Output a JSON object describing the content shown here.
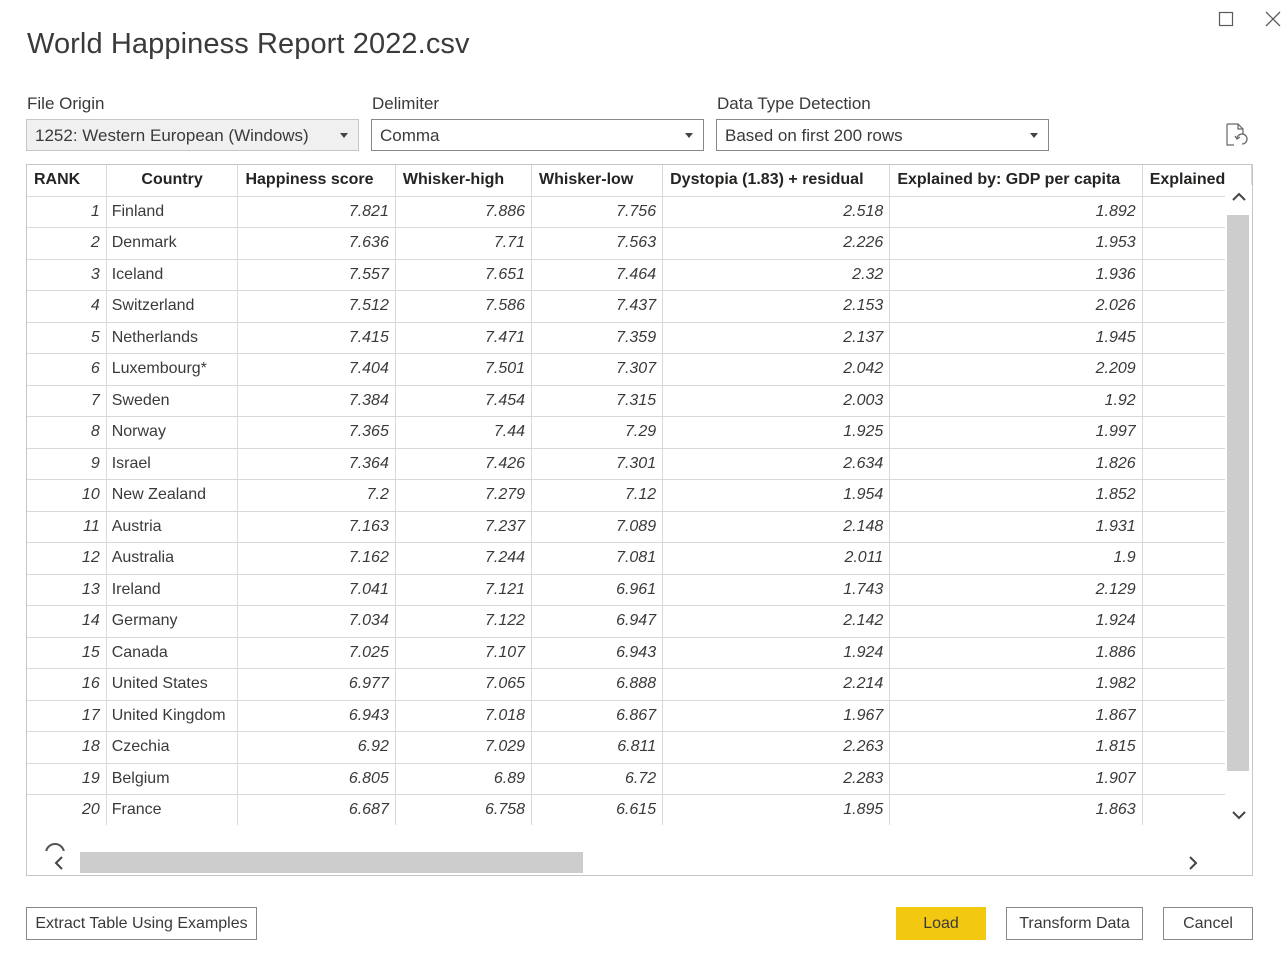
{
  "dialog": {
    "title": "World Happiness Report 2022.csv"
  },
  "options": {
    "file_origin": {
      "label": "File Origin",
      "value": "1252: Western European (Windows)"
    },
    "delimiter": {
      "label": "Delimiter",
      "value": "Comma"
    },
    "data_type_detection": {
      "label": "Data Type Detection",
      "value": "Based on first 200 rows"
    }
  },
  "table": {
    "columns": [
      "RANK",
      "Country",
      "Happiness score",
      "Whisker-high",
      "Whisker-low",
      "Dystopia (1.83) + residual",
      "Explained by: GDP per capita",
      "Explained"
    ],
    "rows": [
      [
        "1",
        "Finland",
        "7.821",
        "7.886",
        "7.756",
        "2.518",
        "1.892"
      ],
      [
        "2",
        "Denmark",
        "7.636",
        "7.71",
        "7.563",
        "2.226",
        "1.953"
      ],
      [
        "3",
        "Iceland",
        "7.557",
        "7.651",
        "7.464",
        "2.32",
        "1.936"
      ],
      [
        "4",
        "Switzerland",
        "7.512",
        "7.586",
        "7.437",
        "2.153",
        "2.026"
      ],
      [
        "5",
        "Netherlands",
        "7.415",
        "7.471",
        "7.359",
        "2.137",
        "1.945"
      ],
      [
        "6",
        "Luxembourg*",
        "7.404",
        "7.501",
        "7.307",
        "2.042",
        "2.209"
      ],
      [
        "7",
        "Sweden",
        "7.384",
        "7.454",
        "7.315",
        "2.003",
        "1.92"
      ],
      [
        "8",
        "Norway",
        "7.365",
        "7.44",
        "7.29",
        "1.925",
        "1.997"
      ],
      [
        "9",
        "Israel",
        "7.364",
        "7.426",
        "7.301",
        "2.634",
        "1.826"
      ],
      [
        "10",
        "New Zealand",
        "7.2",
        "7.279",
        "7.12",
        "1.954",
        "1.852"
      ],
      [
        "11",
        "Austria",
        "7.163",
        "7.237",
        "7.089",
        "2.148",
        "1.931"
      ],
      [
        "12",
        "Australia",
        "7.162",
        "7.244",
        "7.081",
        "2.011",
        "1.9"
      ],
      [
        "13",
        "Ireland",
        "7.041",
        "7.121",
        "6.961",
        "1.743",
        "2.129"
      ],
      [
        "14",
        "Germany",
        "7.034",
        "7.122",
        "6.947",
        "2.142",
        "1.924"
      ],
      [
        "15",
        "Canada",
        "7.025",
        "7.107",
        "6.943",
        "1.924",
        "1.886"
      ],
      [
        "16",
        "United States",
        "6.977",
        "7.065",
        "6.888",
        "2.214",
        "1.982"
      ],
      [
        "17",
        "United Kingdom",
        "6.943",
        "7.018",
        "6.867",
        "1.967",
        "1.867"
      ],
      [
        "18",
        "Czechia",
        "6.92",
        "7.029",
        "6.811",
        "2.263",
        "1.815"
      ],
      [
        "19",
        "Belgium",
        "6.805",
        "6.89",
        "6.72",
        "2.283",
        "1.907"
      ],
      [
        "20",
        "France",
        "6.687",
        "6.758",
        "6.615",
        "1.895",
        "1.863"
      ]
    ]
  },
  "buttons": {
    "extract": "Extract Table Using Examples",
    "load": "Load",
    "transform": "Transform Data",
    "cancel": "Cancel"
  },
  "colors": {
    "primary_button": "#f2c811",
    "border": "#8a8886",
    "grid_line": "#d8d8d8"
  },
  "icons": [
    "maximize-icon",
    "close-icon",
    "refresh-icon",
    "info-icon",
    "chevron-up-icon",
    "chevron-down-icon",
    "chevron-left-icon",
    "chevron-right-icon",
    "dropdown-arrow-icon"
  ]
}
